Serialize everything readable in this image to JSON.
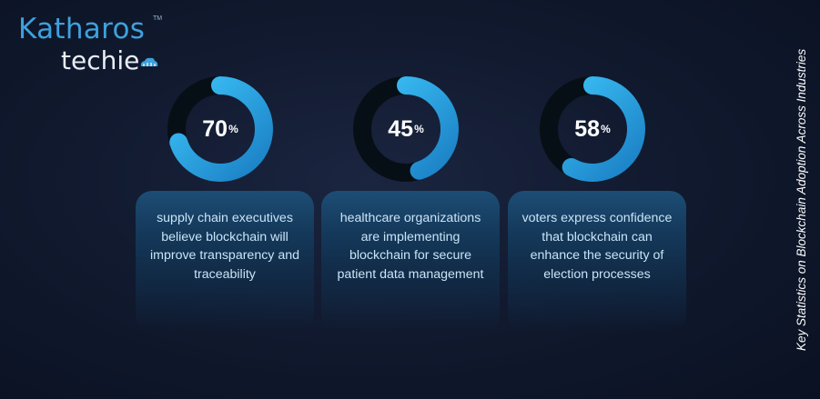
{
  "logo": {
    "brand": "Katharos",
    "sub": "techie",
    "trademark": "TM"
  },
  "side_title": "Key Statistics on Blockchain Adoption Across Industries",
  "colors": {
    "ring_track": "#070f16",
    "ring_start": "#1a7fc4",
    "ring_end": "#3dc3f8",
    "card_top": "#1d4d75"
  },
  "stats": [
    {
      "value": "70",
      "unit": "%",
      "fraction": 0.7,
      "text": "supply chain executives believe blockchain will improve transparency and traceability"
    },
    {
      "value": "45",
      "unit": "%",
      "fraction": 0.45,
      "text": "healthcare organizations are implementing blockchain for secure patient data management"
    },
    {
      "value": "58",
      "unit": "%",
      "fraction": 0.58,
      "text": "voters express confidence that blockchain can enhance the security of election processes"
    }
  ]
}
